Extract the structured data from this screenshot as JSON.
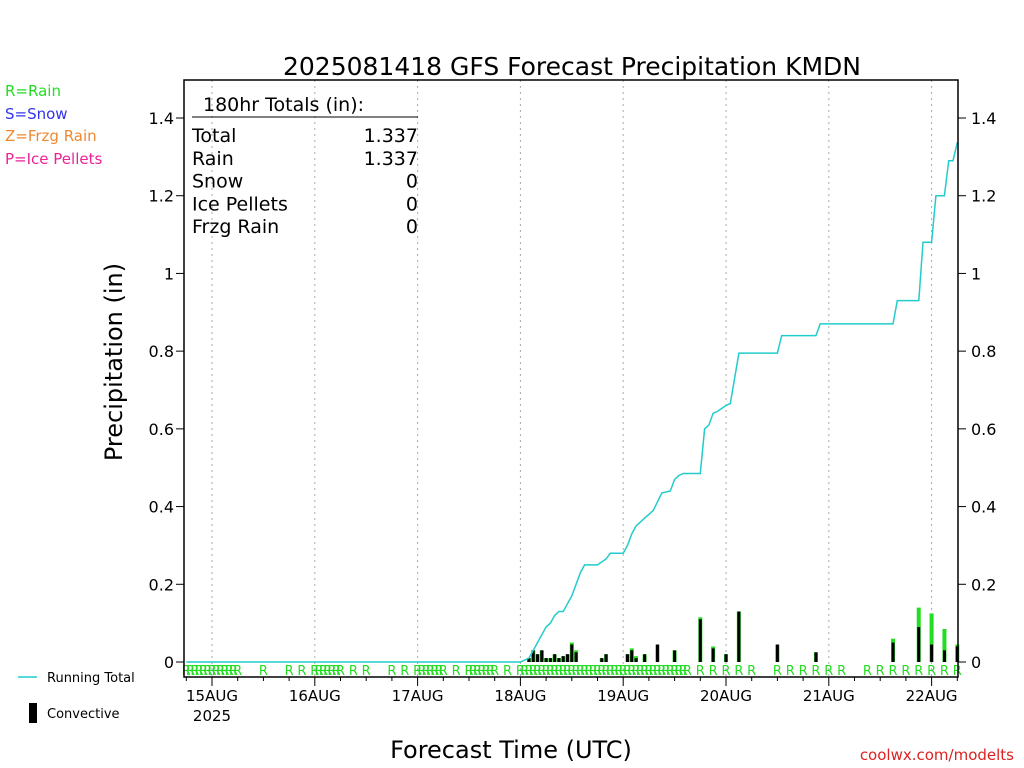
{
  "chart_data": {
    "type": "bar",
    "title": "2025081418 GFS Forecast Precipitation KMDN",
    "xlabel": "Forecast Time (UTC)",
    "ylabel": "Precipitation (in)",
    "ylim": [
      0,
      1.4
    ],
    "yticks": [
      "0",
      "0.2",
      "0.4",
      "0.6",
      "0.8",
      "1",
      "1.2",
      "1.4"
    ],
    "ytick_values": [
      0,
      0.2,
      0.4,
      0.6,
      0.8,
      1,
      1.2,
      1.4
    ],
    "xlim": [
      "2025-08-14T18",
      "2025-08-22T06"
    ],
    "xticks": [
      {
        "label": "15AUG",
        "time": "2025-08-15T00",
        "sublabel": "2025"
      },
      {
        "label": "16AUG",
        "time": "2025-08-16T00"
      },
      {
        "label": "17AUG",
        "time": "2025-08-17T00"
      },
      {
        "label": "18AUG",
        "time": "2025-08-18T00"
      },
      {
        "label": "19AUG",
        "time": "2025-08-19T00"
      },
      {
        "label": "20AUG",
        "time": "2025-08-20T00"
      },
      {
        "label": "21AUG",
        "time": "2025-08-21T00"
      },
      {
        "label": "22AUG",
        "time": "2025-08-22T00"
      }
    ],
    "grid": "vertical dotted at each day",
    "legend": {
      "ptypes": [
        {
          "text": "R=Rain",
          "color": "#22dd22"
        },
        {
          "text": "S=Snow",
          "color": "#3333ee"
        },
        {
          "text": "Z=Frzg Rain",
          "color": "#ee8833"
        },
        {
          "text": "P=Ice Pellets",
          "color": "#ee2299"
        }
      ],
      "running_total": "Running Total",
      "convective": "Convective"
    },
    "totals": {
      "header": "180hr Totals (in):",
      "rows": [
        {
          "label": "Total",
          "value": "1.337"
        },
        {
          "label": "Rain",
          "value": "1.337"
        },
        {
          "label": "Snow",
          "value": "0"
        },
        {
          "label": "Ice Pellets",
          "value": "0"
        },
        {
          "label": "Frzg Rain",
          "value": "0"
        }
      ]
    },
    "series": [
      {
        "name": "Running Total",
        "color": "#22cccc",
        "points": [
          [
            "2025-08-14T18",
            0
          ],
          [
            "2025-08-18T00",
            0
          ],
          [
            "2025-08-18T02",
            0.01
          ],
          [
            "2025-08-18T03",
            0.03
          ],
          [
            "2025-08-18T04",
            0.05
          ],
          [
            "2025-08-18T05",
            0.07
          ],
          [
            "2025-08-18T06",
            0.09
          ],
          [
            "2025-08-18T07",
            0.1
          ],
          [
            "2025-08-18T08",
            0.12
          ],
          [
            "2025-08-18T09",
            0.13
          ],
          [
            "2025-08-18T10",
            0.13
          ],
          [
            "2025-08-18T11",
            0.15
          ],
          [
            "2025-08-18T12",
            0.17
          ],
          [
            "2025-08-18T13",
            0.2
          ],
          [
            "2025-08-18T14",
            0.23
          ],
          [
            "2025-08-18T15",
            0.25
          ],
          [
            "2025-08-18T18",
            0.25
          ],
          [
            "2025-08-18T20",
            0.265
          ],
          [
            "2025-08-18T21",
            0.28
          ],
          [
            "2025-08-19T00",
            0.28
          ],
          [
            "2025-08-19T01",
            0.3
          ],
          [
            "2025-08-19T02",
            0.33
          ],
          [
            "2025-08-19T03",
            0.35
          ],
          [
            "2025-08-19T04",
            0.36
          ],
          [
            "2025-08-19T05",
            0.37
          ],
          [
            "2025-08-19T06",
            0.38
          ],
          [
            "2025-08-19T07",
            0.39
          ],
          [
            "2025-08-19T09",
            0.435
          ],
          [
            "2025-08-19T11",
            0.44
          ],
          [
            "2025-08-19T12",
            0.47
          ],
          [
            "2025-08-19T13",
            0.48
          ],
          [
            "2025-08-19T14",
            0.485
          ],
          [
            "2025-08-19T18",
            0.485
          ],
          [
            "2025-08-19T19",
            0.6
          ],
          [
            "2025-08-19T20",
            0.61
          ],
          [
            "2025-08-19T21",
            0.64
          ],
          [
            "2025-08-19T22",
            0.645
          ],
          [
            "2025-08-20T00",
            0.66
          ],
          [
            "2025-08-20T01",
            0.665
          ],
          [
            "2025-08-20T03",
            0.795
          ],
          [
            "2025-08-20T12",
            0.795
          ],
          [
            "2025-08-20T13",
            0.84
          ],
          [
            "2025-08-20T21",
            0.84
          ],
          [
            "2025-08-20T22",
            0.87
          ],
          [
            "2025-08-21T15",
            0.87
          ],
          [
            "2025-08-21T16",
            0.93
          ],
          [
            "2025-08-21T21",
            0.93
          ],
          [
            "2025-08-21T22",
            1.08
          ],
          [
            "2025-08-22T00",
            1.08
          ],
          [
            "2025-08-22T01",
            1.2
          ],
          [
            "2025-08-22T03",
            1.2
          ],
          [
            "2025-08-22T04",
            1.29
          ],
          [
            "2025-08-22T05",
            1.29
          ],
          [
            "2025-08-22T06",
            1.337
          ]
        ]
      },
      {
        "name": "Rain",
        "color": "#22dd22",
        "bars": [
          [
            "2025-08-18T02",
            0.01
          ],
          [
            "2025-08-18T03",
            0.03
          ],
          [
            "2025-08-18T04",
            0.02
          ],
          [
            "2025-08-18T05",
            0.03
          ],
          [
            "2025-08-18T06",
            0.01
          ],
          [
            "2025-08-18T07",
            0.01
          ],
          [
            "2025-08-18T08",
            0.02
          ],
          [
            "2025-08-18T09",
            0.01
          ],
          [
            "2025-08-18T10",
            0.015
          ],
          [
            "2025-08-18T11",
            0.02
          ],
          [
            "2025-08-18T12",
            0.05
          ],
          [
            "2025-08-18T13",
            0.03
          ],
          [
            "2025-08-18T19",
            0.01
          ],
          [
            "2025-08-18T20",
            0.02
          ],
          [
            "2025-08-19T01",
            0.02
          ],
          [
            "2025-08-19T02",
            0.035
          ],
          [
            "2025-08-19T03",
            0.015
          ],
          [
            "2025-08-19T05",
            0.02
          ],
          [
            "2025-08-19T08",
            0.045
          ],
          [
            "2025-08-19T12",
            0.03
          ],
          [
            "2025-08-19T18",
            0.115
          ],
          [
            "2025-08-19T21",
            0.04
          ],
          [
            "2025-08-20T00",
            0.02
          ],
          [
            "2025-08-20T03",
            0.13
          ],
          [
            "2025-08-20T12",
            0.045
          ],
          [
            "2025-08-20T21",
            0.025
          ],
          [
            "2025-08-21T15",
            0.06
          ],
          [
            "2025-08-21T21",
            0.14
          ],
          [
            "2025-08-22T00",
            0.125
          ],
          [
            "2025-08-22T03",
            0.085
          ],
          [
            "2025-08-22T06",
            0.045
          ]
        ]
      },
      {
        "name": "Convective",
        "color": "#000000",
        "bars": [
          [
            "2025-08-18T02",
            0.01
          ],
          [
            "2025-08-18T03",
            0.03
          ],
          [
            "2025-08-18T04",
            0.02
          ],
          [
            "2025-08-18T05",
            0.03
          ],
          [
            "2025-08-18T06",
            0.01
          ],
          [
            "2025-08-18T07",
            0.01
          ],
          [
            "2025-08-18T08",
            0.02
          ],
          [
            "2025-08-18T09",
            0.01
          ],
          [
            "2025-08-18T10",
            0.015
          ],
          [
            "2025-08-18T11",
            0.02
          ],
          [
            "2025-08-18T12",
            0.045
          ],
          [
            "2025-08-18T13",
            0.025
          ],
          [
            "2025-08-18T19",
            0.01
          ],
          [
            "2025-08-18T20",
            0.02
          ],
          [
            "2025-08-19T01",
            0.02
          ],
          [
            "2025-08-19T02",
            0.03
          ],
          [
            "2025-08-19T03",
            0.01
          ],
          [
            "2025-08-19T05",
            0.02
          ],
          [
            "2025-08-19T08",
            0.045
          ],
          [
            "2025-08-19T12",
            0.03
          ],
          [
            "2025-08-19T18",
            0.11
          ],
          [
            "2025-08-19T21",
            0.035
          ],
          [
            "2025-08-20T00",
            0.02
          ],
          [
            "2025-08-20T03",
            0.13
          ],
          [
            "2025-08-20T12",
            0.045
          ],
          [
            "2025-08-20T21",
            0.025
          ],
          [
            "2025-08-21T15",
            0.05
          ],
          [
            "2025-08-21T21",
            0.09
          ],
          [
            "2025-08-22T00",
            0.045
          ],
          [
            "2025-08-22T03",
            0.03
          ],
          [
            "2025-08-22T06",
            0.04
          ]
        ]
      }
    ],
    "ptype_markers": {
      "symbol": "R",
      "color": "#22dd22",
      "times": [
        "2025-08-14T18",
        "2025-08-14T19",
        "2025-08-14T20",
        "2025-08-14T21",
        "2025-08-14T22",
        "2025-08-14T23",
        "2025-08-15T00",
        "2025-08-15T01",
        "2025-08-15T02",
        "2025-08-15T03",
        "2025-08-15T04",
        "2025-08-15T05",
        "2025-08-15T06",
        "2025-08-15T12",
        "2025-08-15T18",
        "2025-08-15T21",
        "2025-08-16T00",
        "2025-08-16T01",
        "2025-08-16T02",
        "2025-08-16T03",
        "2025-08-16T04",
        "2025-08-16T05",
        "2025-08-16T06",
        "2025-08-16T09",
        "2025-08-16T12",
        "2025-08-16T18",
        "2025-08-16T21",
        "2025-08-17T00",
        "2025-08-17T01",
        "2025-08-17T02",
        "2025-08-17T03",
        "2025-08-17T04",
        "2025-08-17T05",
        "2025-08-17T06",
        "2025-08-17T09",
        "2025-08-17T12",
        "2025-08-17T13",
        "2025-08-17T14",
        "2025-08-17T15",
        "2025-08-17T16",
        "2025-08-17T17",
        "2025-08-17T18",
        "2025-08-17T21",
        "2025-08-18T00",
        "2025-08-18T01",
        "2025-08-18T02",
        "2025-08-18T03",
        "2025-08-18T04",
        "2025-08-18T05",
        "2025-08-18T06",
        "2025-08-18T07",
        "2025-08-18T08",
        "2025-08-18T09",
        "2025-08-18T10",
        "2025-08-18T11",
        "2025-08-18T12",
        "2025-08-18T13",
        "2025-08-18T14",
        "2025-08-18T15",
        "2025-08-18T16",
        "2025-08-18T17",
        "2025-08-18T18",
        "2025-08-18T19",
        "2025-08-18T20",
        "2025-08-18T21",
        "2025-08-18T22",
        "2025-08-18T23",
        "2025-08-19T00",
        "2025-08-19T01",
        "2025-08-19T02",
        "2025-08-19T03",
        "2025-08-19T04",
        "2025-08-19T05",
        "2025-08-19T06",
        "2025-08-19T07",
        "2025-08-19T08",
        "2025-08-19T09",
        "2025-08-19T10",
        "2025-08-19T11",
        "2025-08-19T12",
        "2025-08-19T13",
        "2025-08-19T14",
        "2025-08-19T15",
        "2025-08-19T18",
        "2025-08-19T21",
        "2025-08-20T00",
        "2025-08-20T03",
        "2025-08-20T06",
        "2025-08-20T12",
        "2025-08-20T15",
        "2025-08-20T18",
        "2025-08-20T21",
        "2025-08-21T00",
        "2025-08-21T03",
        "2025-08-21T09",
        "2025-08-21T12",
        "2025-08-21T15",
        "2025-08-21T18",
        "2025-08-21T21",
        "2025-08-22T00",
        "2025-08-22T03",
        "2025-08-22T06"
      ]
    },
    "watermark": "coolwx.com/modelts"
  }
}
